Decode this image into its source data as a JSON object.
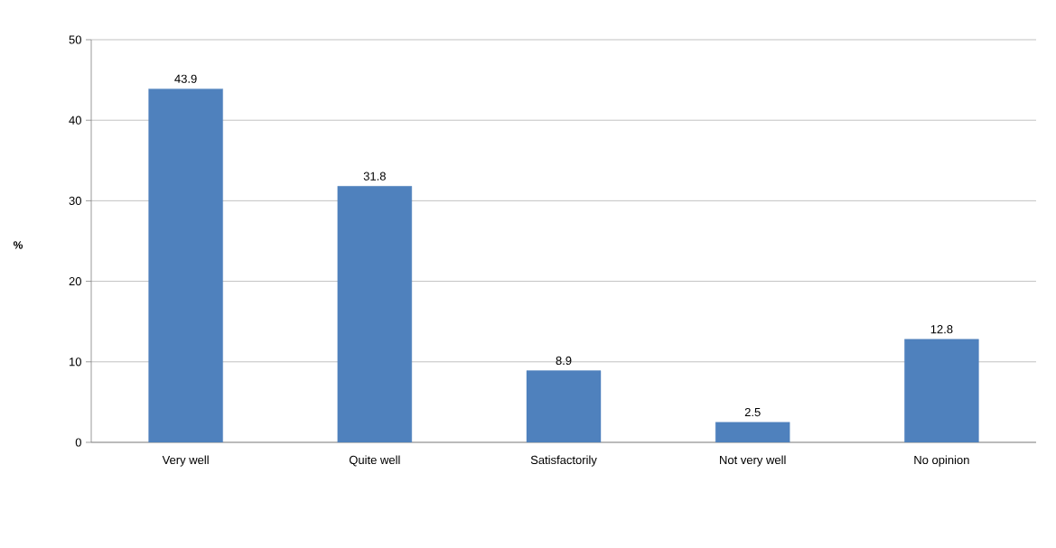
{
  "chart_data": {
    "type": "bar",
    "ylabel": "%",
    "categories": [
      "Very well",
      "Quite well",
      "Satisfactorily",
      "Not very well",
      "No opinion"
    ],
    "values": [
      43.9,
      31.8,
      8.9,
      2.5,
      12.8
    ],
    "color": "#4f81bd",
    "ylim": [
      0,
      50
    ],
    "yticks": [
      0,
      10,
      20,
      30,
      40,
      50
    ],
    "grid": "y",
    "data_labels": true
  }
}
